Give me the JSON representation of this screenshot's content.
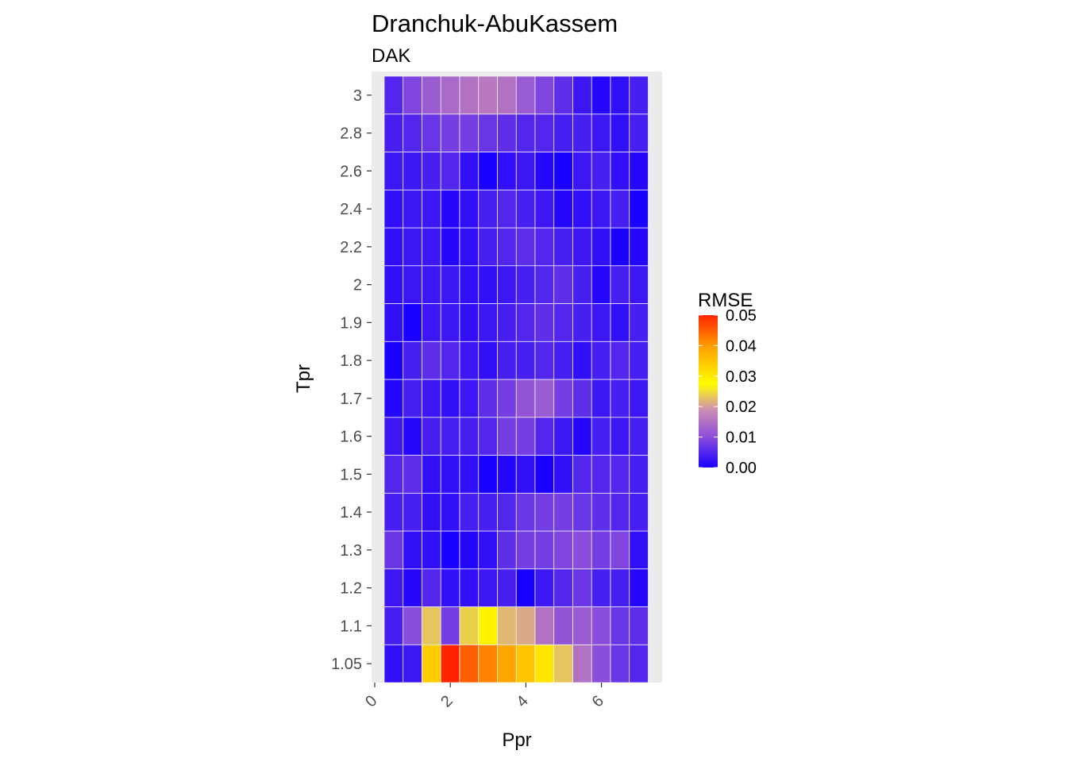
{
  "chart_data": {
    "type": "heatmap",
    "title": "Dranchuk-AbuKassem",
    "subtitle": "DAK",
    "xlabel": "Ppr",
    "ylabel": "Tpr",
    "x_ticks": [
      "0",
      "2",
      "4",
      "6"
    ],
    "x_tick_values": [
      0,
      2,
      4,
      6
    ],
    "xlim": [
      -0.2,
      7.5
    ],
    "x": [
      0.5,
      1.0,
      1.5,
      2.0,
      2.5,
      3.0,
      3.5,
      4.0,
      4.5,
      5.0,
      5.5,
      6.0,
      6.5,
      7.0
    ],
    "y": [
      "1.05",
      "1.1",
      "1.2",
      "1.3",
      "1.4",
      "1.5",
      "1.6",
      "1.7",
      "1.8",
      "1.9",
      "2",
      "2.2",
      "2.4",
      "2.6",
      "2.8",
      "3"
    ],
    "values": [
      [
        0.002,
        0.003,
        0.034,
        0.05,
        0.045,
        0.042,
        0.039,
        0.035,
        0.031,
        0.023,
        0.015,
        0.01,
        0.007,
        0.005
      ],
      [
        0.004,
        0.01,
        0.023,
        0.008,
        0.024,
        0.029,
        0.022,
        0.021,
        0.015,
        0.011,
        0.012,
        0.01,
        0.007,
        0.006
      ],
      [
        0.003,
        0.001,
        0.005,
        0.002,
        0.002,
        0.003,
        0.004,
        0.0,
        0.003,
        0.005,
        0.007,
        0.004,
        0.004,
        0.001
      ],
      [
        0.007,
        0.002,
        0.002,
        0.0,
        0.001,
        0.002,
        0.006,
        0.008,
        0.008,
        0.009,
        0.01,
        0.008,
        0.009,
        0.002
      ],
      [
        0.004,
        0.004,
        0.002,
        0.002,
        0.004,
        0.004,
        0.005,
        0.007,
        0.008,
        0.008,
        0.007,
        0.006,
        0.005,
        0.004
      ],
      [
        0.005,
        0.006,
        0.002,
        0.002,
        0.002,
        0.0,
        0.001,
        0.002,
        0.0,
        0.002,
        0.005,
        0.005,
        0.005,
        0.004
      ],
      [
        0.003,
        0.001,
        0.004,
        0.004,
        0.004,
        0.005,
        0.008,
        0.008,
        0.005,
        0.003,
        0.001,
        0.004,
        0.003,
        0.004
      ],
      [
        0.001,
        0.004,
        0.003,
        0.002,
        0.003,
        0.006,
        0.008,
        0.011,
        0.012,
        0.008,
        0.006,
        0.003,
        0.004,
        0.003
      ],
      [
        0.0,
        0.004,
        0.006,
        0.005,
        0.003,
        0.002,
        0.004,
        0.004,
        0.005,
        0.004,
        0.002,
        0.004,
        0.005,
        0.004
      ],
      [
        0.002,
        0.0,
        0.003,
        0.003,
        0.002,
        0.003,
        0.004,
        0.005,
        0.006,
        0.005,
        0.004,
        0.003,
        0.002,
        0.004
      ],
      [
        0.002,
        0.003,
        0.003,
        0.003,
        0.002,
        0.002,
        0.003,
        0.004,
        0.005,
        0.006,
        0.004,
        0.001,
        0.004,
        0.003
      ],
      [
        0.002,
        0.003,
        0.003,
        0.001,
        0.002,
        0.004,
        0.005,
        0.006,
        0.005,
        0.004,
        0.003,
        0.002,
        0.0,
        0.001
      ],
      [
        0.002,
        0.003,
        0.003,
        0.001,
        0.002,
        0.004,
        0.005,
        0.004,
        0.003,
        0.001,
        0.002,
        0.003,
        0.004,
        0.0
      ],
      [
        0.003,
        0.003,
        0.004,
        0.005,
        0.002,
        0.0,
        0.002,
        0.003,
        0.001,
        0.0,
        0.003,
        0.004,
        0.002,
        0.001
      ],
      [
        0.004,
        0.005,
        0.007,
        0.008,
        0.008,
        0.007,
        0.006,
        0.005,
        0.005,
        0.004,
        0.004,
        0.003,
        0.002,
        0.004
      ],
      [
        0.005,
        0.009,
        0.012,
        0.014,
        0.015,
        0.016,
        0.015,
        0.012,
        0.009,
        0.006,
        0.003,
        0.001,
        0.002,
        0.004
      ]
    ],
    "legend": {
      "title": "RMSE",
      "breaks": [
        "0.05",
        "0.04",
        "0.03",
        "0.02",
        "0.01",
        "0.00"
      ],
      "break_values": [
        0.05,
        0.04,
        0.03,
        0.02,
        0.01,
        0.0
      ],
      "range": [
        0.0,
        0.05
      ],
      "colors": [
        "#1a00ff",
        "#8b4ddb",
        "#cf8fb2",
        "#ffff00",
        "#ffa500",
        "#ff2400"
      ],
      "color_stops": [
        0.0,
        0.2,
        0.38,
        0.55,
        0.78,
        1.0
      ],
      "placement": "right"
    },
    "grid": true
  },
  "colors": {
    "panel_background": "#ebebeb",
    "grid_line": "#ffffff",
    "tick_color": "#333333"
  }
}
